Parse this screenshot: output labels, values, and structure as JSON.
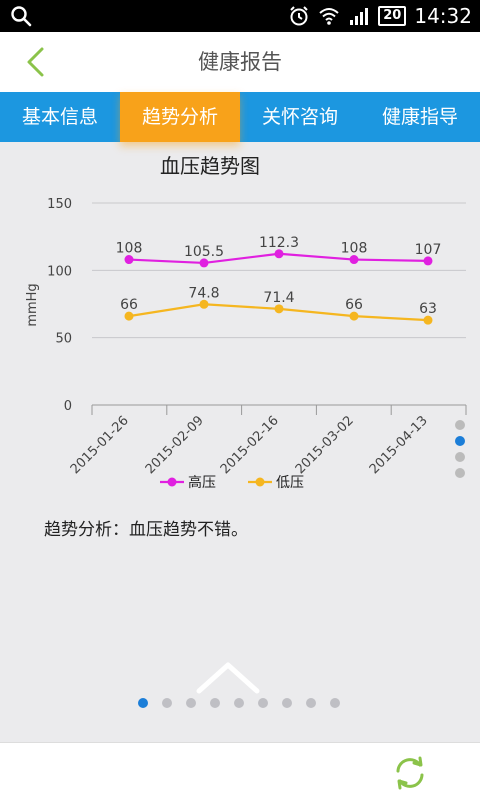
{
  "status_bar": {
    "time": "14:32",
    "battery": "20",
    "icons": [
      "search-icon",
      "alarm-icon",
      "wifi-icon",
      "signal-icon",
      "battery-icon"
    ]
  },
  "header": {
    "title": "健康报告",
    "back_icon": "chevron-left-icon"
  },
  "tabs": [
    {
      "label": "基本信息",
      "active": false
    },
    {
      "label": "趋势分析",
      "active": true
    },
    {
      "label": "关怀咨询",
      "active": false
    },
    {
      "label": "健康指导",
      "active": false
    }
  ],
  "colors": {
    "tab_bar": "#1c97e0",
    "tab_active": "#f8a21a",
    "high_series": "#e020e0",
    "low_series": "#f5b620",
    "back_arrow": "#8bc34a",
    "refresh": "#8bc34a"
  },
  "chart_data": {
    "type": "line",
    "title": "血压趋势图",
    "ylabel": "mmHg",
    "xlabel": "",
    "ylim": [
      0,
      150
    ],
    "yticks": [
      0,
      50,
      100,
      150
    ],
    "grid": true,
    "legend_position": "bottom",
    "categories": [
      "2015-01-26",
      "2015-02-09",
      "2015-02-16",
      "2015-03-02",
      "2015-04-13"
    ],
    "series": [
      {
        "name": "高压",
        "color": "#e020e0",
        "values": [
          108,
          105.5,
          112.3,
          108,
          107
        ],
        "labels": [
          "108",
          "105.5",
          "112.3",
          "108",
          "107"
        ]
      },
      {
        "name": "低压",
        "color": "#f5b620",
        "values": [
          66,
          74.8,
          71.4,
          66,
          63
        ],
        "labels": [
          "66",
          "74.8",
          "71.4",
          "66",
          "63"
        ]
      }
    ]
  },
  "analysis": {
    "label": "趋势分析：",
    "text": "血压趋势不错。"
  },
  "chart_pager": {
    "count": 4,
    "active": 1
  },
  "page_pager": {
    "count": 9,
    "active": 0
  },
  "bottom_bar": {
    "refresh_icon": "refresh-icon"
  }
}
